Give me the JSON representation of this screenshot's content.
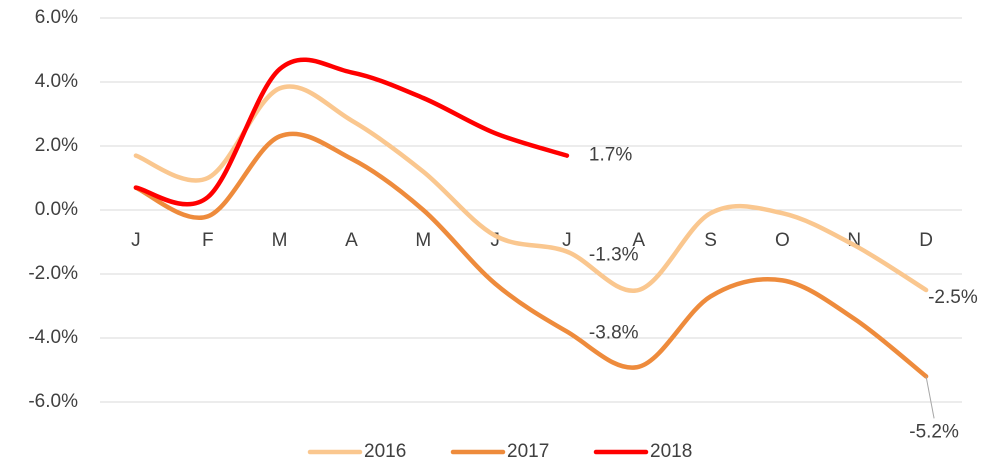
{
  "chart_data": {
    "type": "line",
    "categories": [
      "J",
      "F",
      "M",
      "A",
      "M",
      "J",
      "J",
      "A",
      "S",
      "O",
      "N",
      "D"
    ],
    "series": [
      {
        "name": "2016",
        "color": "#FAC78F",
        "values": [
          1.7,
          1.0,
          3.8,
          2.8,
          1.2,
          -0.8,
          -1.3,
          -2.5,
          -0.1,
          -0.1,
          -1.1,
          -2.5
        ],
        "value_labels": [
          null,
          null,
          null,
          null,
          null,
          null,
          "-1.3%",
          null,
          null,
          null,
          null,
          "-2.5%"
        ]
      },
      {
        "name": "2017",
        "color": "#EE8B3C",
        "values": [
          0.7,
          -0.2,
          2.3,
          1.6,
          0.0,
          -2.3,
          -3.8,
          -4.9,
          -2.7,
          -2.2,
          -3.4,
          -5.2
        ],
        "value_labels": [
          null,
          null,
          null,
          null,
          null,
          null,
          "-3.8%",
          null,
          null,
          null,
          null,
          "-5.2%"
        ]
      },
      {
        "name": "2018",
        "color": "#FF0000",
        "values": [
          0.7,
          0.4,
          4.4,
          4.3,
          3.5,
          2.4,
          1.7,
          null,
          null,
          null,
          null,
          null
        ],
        "value_labels": [
          null,
          null,
          null,
          null,
          null,
          null,
          "1.7%",
          null,
          null,
          null,
          null,
          null
        ]
      }
    ],
    "ylim": [
      -6,
      6
    ],
    "yticks": [
      {
        "value": -6,
        "label": "-6.0%"
      },
      {
        "value": -4,
        "label": "-4.0%"
      },
      {
        "value": -2,
        "label": "-2.0%"
      },
      {
        "value": 0,
        "label": "0.0%"
      },
      {
        "value": 2,
        "label": "2.0%"
      },
      {
        "value": 4,
        "label": "4.0%"
      },
      {
        "value": 6,
        "label": "6.0%"
      }
    ],
    "grid": true,
    "legend": "bottom"
  }
}
